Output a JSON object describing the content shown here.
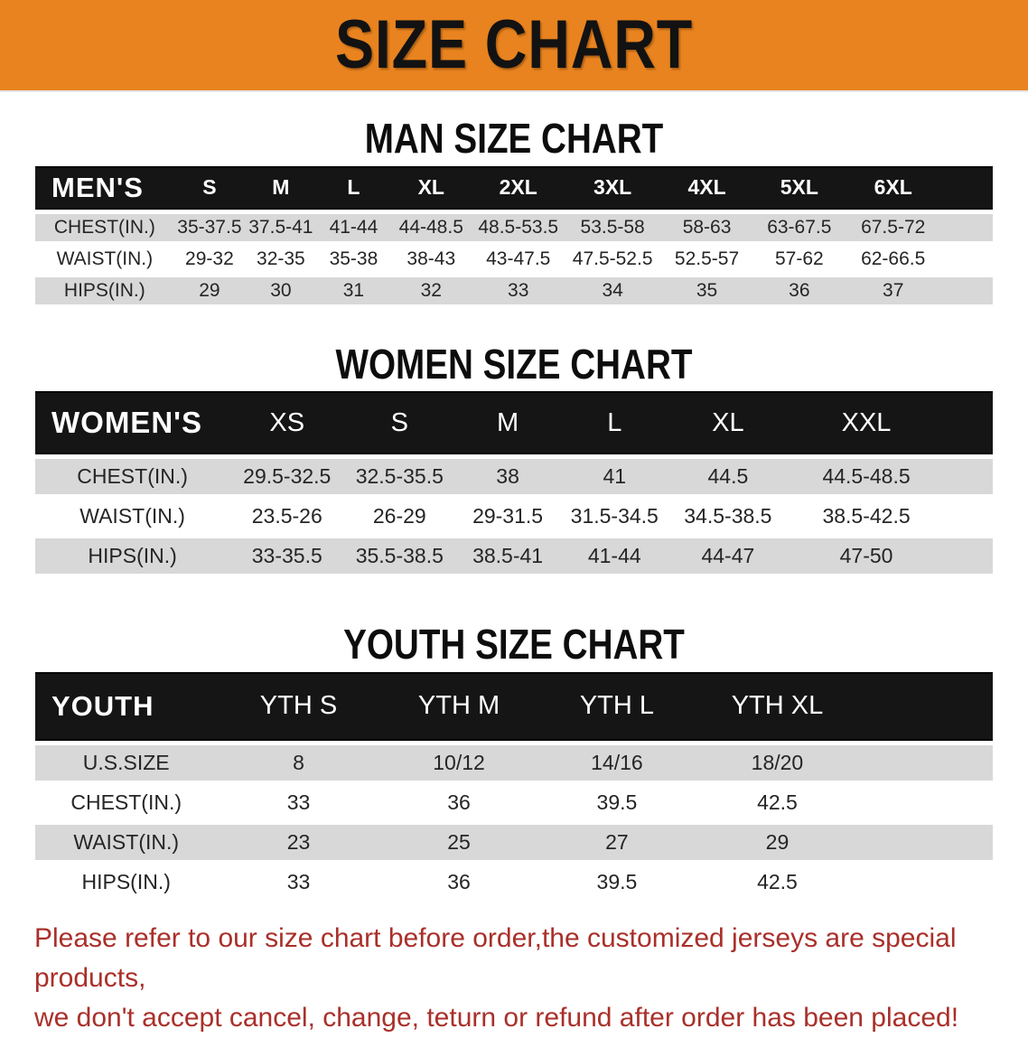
{
  "banner": {
    "title": "SIZE CHART"
  },
  "headings": {
    "man": "MAN SIZE CHART",
    "women": "WOMEN SIZE CHART",
    "youth": "YOUTH SIZE CHART"
  },
  "men": {
    "label": "MEN'S",
    "columns": [
      "S",
      "M",
      "L",
      "XL",
      "2XL",
      "3XL",
      "4XL",
      "5XL",
      "6XL"
    ],
    "rows": [
      {
        "label": "CHEST(IN.)",
        "values": [
          "35-37.5",
          "37.5-41",
          "41-44",
          "44-48.5",
          "48.5-53.5",
          "53.5-58",
          "58-63",
          "63-67.5",
          "67.5-72"
        ]
      },
      {
        "label": "WAIST(IN.)",
        "values": [
          "29-32",
          "32-35",
          "35-38",
          "38-43",
          "43-47.5",
          "47.5-52.5",
          "52.5-57",
          "57-62",
          "62-66.5"
        ]
      },
      {
        "label": "HIPS(IN.)",
        "values": [
          "29",
          "30",
          "31",
          "32",
          "33",
          "34",
          "35",
          "36",
          "37"
        ]
      }
    ]
  },
  "women": {
    "label": "WOMEN'S",
    "columns": [
      "XS",
      "S",
      "M",
      "L",
      "XL",
      "XXL"
    ],
    "rows": [
      {
        "label": "CHEST(IN.)",
        "values": [
          "29.5-32.5",
          "32.5-35.5",
          "38",
          "41",
          "44.5",
          "44.5-48.5"
        ]
      },
      {
        "label": "WAIST(IN.)",
        "values": [
          "23.5-26",
          "26-29",
          "29-31.5",
          "31.5-34.5",
          "34.5-38.5",
          "38.5-42.5"
        ]
      },
      {
        "label": "HIPS(IN.)",
        "values": [
          "33-35.5",
          "35.5-38.5",
          "38.5-41",
          "41-44",
          "44-47",
          "47-50"
        ]
      }
    ]
  },
  "youth": {
    "label": "YOUTH",
    "columns": [
      "YTH S",
      "YTH M",
      "YTH L",
      "YTH XL"
    ],
    "rows": [
      {
        "label": "U.S.SIZE",
        "values": [
          "8",
          "10/12",
          "14/16",
          "18/20"
        ]
      },
      {
        "label": "CHEST(IN.)",
        "values": [
          "33",
          "36",
          "39.5",
          "42.5"
        ]
      },
      {
        "label": "WAIST(IN.)",
        "values": [
          "23",
          "25",
          "27",
          "29"
        ]
      },
      {
        "label": "HIPS(IN.)",
        "values": [
          "33",
          "36",
          "39.5",
          "42.5"
        ]
      }
    ]
  },
  "footer": {
    "line1": "Please refer to our size chart before order,the customized jerseys are special products,",
    "line2": "we don't accept cancel, change, teturn or refund after order has been placed!"
  },
  "colors": {
    "banner_orange": "#E8831F",
    "header_bar_black": "#151515",
    "stripe_gray": "#D8D8D8",
    "disclaimer_red": "#A9302A"
  }
}
